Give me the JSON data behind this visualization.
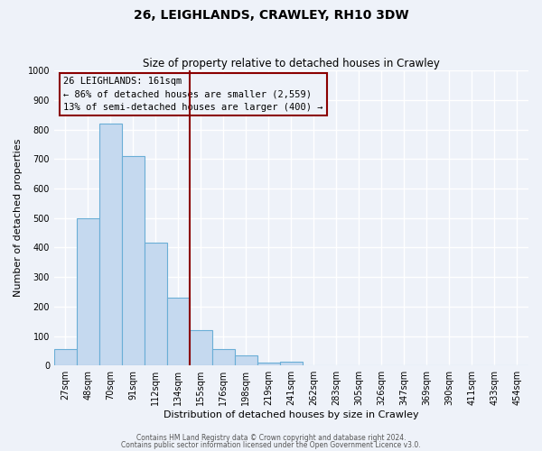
{
  "title": "26, LEIGHLANDS, CRAWLEY, RH10 3DW",
  "subtitle": "Size of property relative to detached houses in Crawley",
  "xlabel": "Distribution of detached houses by size in Crawley",
  "ylabel": "Number of detached properties",
  "bar_labels": [
    "27sqm",
    "48sqm",
    "70sqm",
    "91sqm",
    "112sqm",
    "134sqm",
    "155sqm",
    "176sqm",
    "198sqm",
    "219sqm",
    "241sqm",
    "262sqm",
    "283sqm",
    "305sqm",
    "326sqm",
    "347sqm",
    "369sqm",
    "390sqm",
    "411sqm",
    "433sqm",
    "454sqm"
  ],
  "bar_values": [
    55,
    500,
    820,
    710,
    415,
    230,
    120,
    57,
    33,
    10,
    13,
    0,
    0,
    0,
    0,
    0,
    0,
    0,
    0,
    0,
    0
  ],
  "bar_color": "#c5d9ef",
  "bar_edge_color": "#6aaed6",
  "vline_x_index": 6,
  "vline_color": "#8b0000",
  "annotation_title": "26 LEIGHLANDS: 161sqm",
  "annotation_line1": "← 86% of detached houses are smaller (2,559)",
  "annotation_line2": "13% of semi-detached houses are larger (400) →",
  "annotation_box_color": "#8b0000",
  "ylim": [
    0,
    1000
  ],
  "yticks": [
    0,
    100,
    200,
    300,
    400,
    500,
    600,
    700,
    800,
    900,
    1000
  ],
  "footer1": "Contains HM Land Registry data © Crown copyright and database right 2024.",
  "footer2": "Contains public sector information licensed under the Open Government Licence v3.0.",
  "background_color": "#eef2f9",
  "title_fontsize": 10,
  "subtitle_fontsize": 8.5,
  "xlabel_fontsize": 8,
  "ylabel_fontsize": 8,
  "tick_fontsize": 7,
  "annotation_fontsize": 7.5,
  "footer_fontsize": 5.5
}
